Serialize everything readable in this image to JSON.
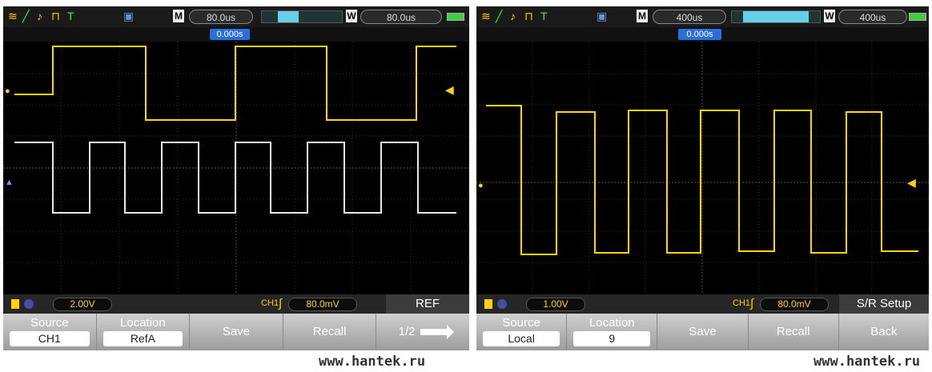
{
  "colors": {
    "ch1": "#ffd400",
    "ref": "#e8e8e8",
    "grid": "#3a3a3a",
    "accent": "#2a6fd8"
  },
  "screens": [
    {
      "top_bar": {
        "icons": [
          "waveform-icon",
          "slope-icon",
          "pulse-icon",
          "trigger-t-icon",
          "save-disk-icon"
        ],
        "m_label": "M",
        "m_value": "80.0us",
        "w_label": "W",
        "w_value": "80.0us",
        "trigger_position": "0.000s"
      },
      "status": {
        "volts": "2.00V",
        "ch": "CH1",
        "trigger_level": "80.0mV",
        "title": "REF"
      },
      "menu": {
        "source_label": "Source",
        "source_value": "CH1",
        "location_label": "Location",
        "location_value": "RefA",
        "save_label": "Save",
        "recall_label": "Recall",
        "page_label": "1/2"
      },
      "watermark": "www.hantek.ru"
    },
    {
      "top_bar": {
        "icons": [
          "waveform-icon",
          "slope-icon",
          "pulse-icon",
          "trigger-t-icon",
          "save-disk-icon"
        ],
        "m_label": "M",
        "m_value": "400us",
        "w_label": "W",
        "w_value": "400us",
        "trigger_position": "0.000s"
      },
      "status": {
        "volts": "1.00V",
        "ch": "CH1",
        "trigger_level": "80.0mV",
        "title": "S/R Setup"
      },
      "menu": {
        "source_label": "Source",
        "source_value": "Local",
        "location_label": "Location",
        "location_value": "9",
        "save_label": "Save",
        "recall_label": "Recall",
        "back_label": "Back"
      },
      "watermark": "www.hantek.ru"
    }
  ]
}
